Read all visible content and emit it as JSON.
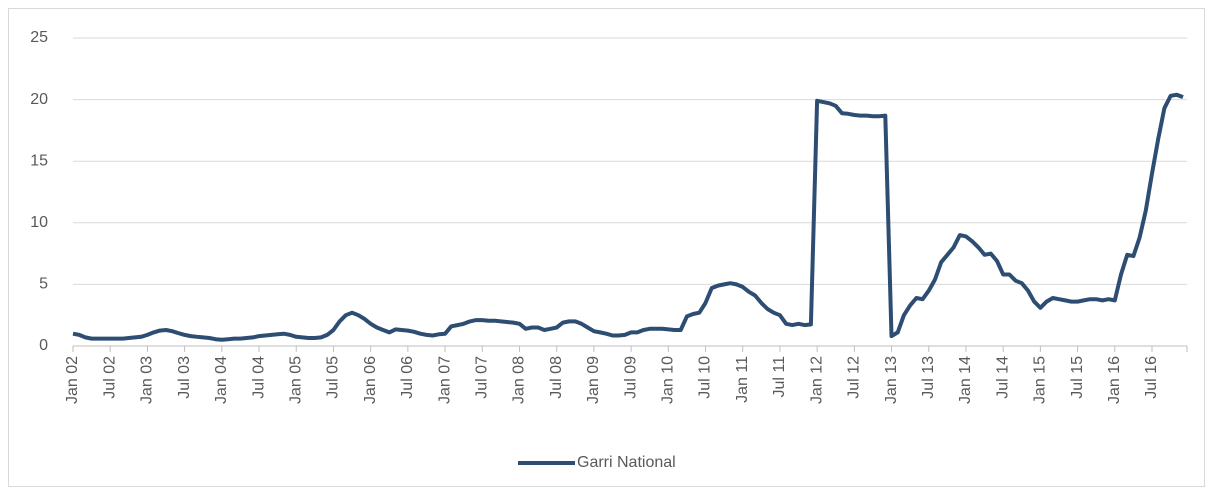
{
  "chart_data": {
    "type": "line",
    "categories": [
      "Jan 02",
      null,
      null,
      null,
      null,
      null,
      "Jul 02",
      null,
      null,
      null,
      null,
      null,
      "Jan 03",
      null,
      null,
      null,
      null,
      null,
      "Jul 03",
      null,
      null,
      null,
      null,
      null,
      "Jan 04",
      null,
      null,
      null,
      null,
      null,
      "Jul 04",
      null,
      null,
      null,
      null,
      null,
      "Jan 05",
      null,
      null,
      null,
      null,
      null,
      "Jul 05",
      null,
      null,
      null,
      null,
      null,
      "Jan 06",
      null,
      null,
      null,
      null,
      null,
      "Jul 06",
      null,
      null,
      null,
      null,
      null,
      "Jan 07",
      null,
      null,
      null,
      null,
      null,
      "Jul 07",
      null,
      null,
      null,
      null,
      null,
      "Jan 08",
      null,
      null,
      null,
      null,
      null,
      "Jul 08",
      null,
      null,
      null,
      null,
      null,
      "Jan 09",
      null,
      null,
      null,
      null,
      null,
      "Jul 09",
      null,
      null,
      null,
      null,
      null,
      "Jan 10",
      null,
      null,
      null,
      null,
      null,
      "Jul 10",
      null,
      null,
      null,
      null,
      null,
      "Jan 11",
      null,
      null,
      null,
      null,
      null,
      "Jul 11",
      null,
      null,
      null,
      null,
      null,
      "Jan 12",
      null,
      null,
      null,
      null,
      null,
      "Jul 12",
      null,
      null,
      null,
      null,
      null,
      "Jan 13",
      null,
      null,
      null,
      null,
      null,
      "Jul 13",
      null,
      null,
      null,
      null,
      null,
      "Jan 14",
      null,
      null,
      null,
      null,
      null,
      "Jul 14",
      null,
      null,
      null,
      null,
      null,
      "Jan 15",
      null,
      null,
      null,
      null,
      null,
      "Jul 15",
      null,
      null,
      null,
      null,
      null,
      "Jan 16",
      null,
      null,
      null,
      null,
      null,
      "Jul 16",
      null,
      null,
      null,
      null,
      null
    ],
    "series": [
      {
        "name": "Garri National",
        "color": "#2e4d73",
        "values": [
          1.0,
          0.9,
          0.7,
          0.6,
          0.6,
          0.6,
          0.6,
          0.6,
          0.6,
          0.65,
          0.7,
          0.75,
          0.9,
          1.1,
          1.25,
          1.3,
          1.2,
          1.05,
          0.9,
          0.8,
          0.75,
          0.7,
          0.65,
          0.55,
          0.5,
          0.55,
          0.6,
          0.6,
          0.65,
          0.7,
          0.8,
          0.85,
          0.9,
          0.95,
          1.0,
          0.9,
          0.75,
          0.7,
          0.65,
          0.65,
          0.7,
          0.9,
          1.3,
          2.0,
          2.5,
          2.7,
          2.5,
          2.2,
          1.8,
          1.5,
          1.3,
          1.1,
          1.35,
          1.3,
          1.25,
          1.15,
          1.0,
          0.9,
          0.85,
          0.95,
          1.0,
          1.6,
          1.7,
          1.8,
          2.0,
          2.1,
          2.1,
          2.05,
          2.05,
          2.0,
          1.95,
          1.9,
          1.8,
          1.4,
          1.5,
          1.5,
          1.3,
          1.4,
          1.5,
          1.9,
          2.0,
          2.0,
          1.8,
          1.5,
          1.2,
          1.1,
          1.0,
          0.85,
          0.85,
          0.9,
          1.1,
          1.1,
          1.3,
          1.4,
          1.4,
          1.4,
          1.35,
          1.3,
          1.3,
          2.4,
          2.6,
          2.7,
          3.5,
          4.7,
          4.9,
          5.0,
          5.1,
          5.0,
          4.8,
          4.4,
          4.1,
          3.5,
          3.0,
          2.7,
          2.5,
          1.8,
          1.7,
          1.8,
          1.7,
          1.75,
          19.9,
          19.8,
          19.7,
          19.5,
          18.9,
          18.85,
          18.75,
          18.7,
          18.7,
          18.65,
          18.65,
          18.7,
          0.8,
          1.1,
          2.5,
          3.3,
          3.9,
          3.8,
          4.5,
          5.4,
          6.8,
          7.4,
          8.0,
          9.0,
          8.9,
          8.5,
          8.0,
          7.4,
          7.5,
          6.9,
          5.8,
          5.8,
          5.3,
          5.1,
          4.5,
          3.6,
          3.1,
          3.6,
          3.9,
          3.8,
          3.7,
          3.6,
          3.6,
          3.7,
          3.8,
          3.8,
          3.7,
          3.8,
          3.7,
          5.8,
          7.4,
          7.3,
          8.8,
          11,
          14,
          16.8,
          19.3,
          20.3,
          20.4,
          20.2
        ]
      }
    ],
    "ylim": [
      0,
      25
    ],
    "yticks": [
      0,
      5,
      10,
      15,
      20,
      25
    ],
    "grid": true,
    "legend": "bottom"
  }
}
